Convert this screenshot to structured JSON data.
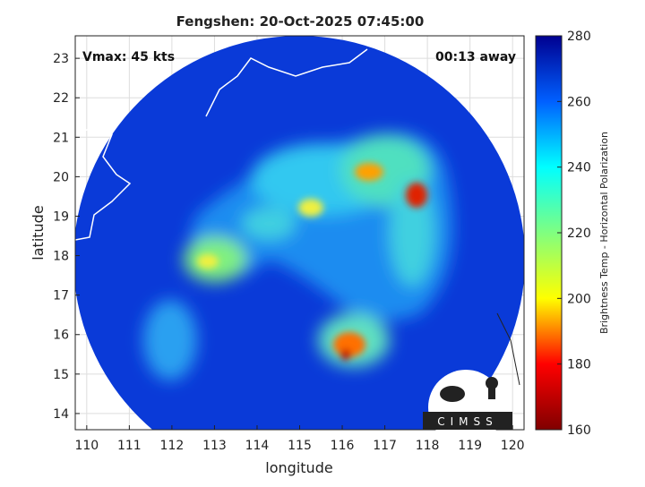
{
  "chart_data": {
    "type": "map",
    "title": "Fengshen: 20-Oct-2025 07:45:00",
    "annotations": [
      "Vmax: 45 kts",
      "00:13 away"
    ],
    "x_label": "longitude",
    "y_label": "latitude",
    "xlim": [
      109.73,
      120.27
    ],
    "xticks": [
      110,
      111,
      112,
      113,
      114,
      115,
      116,
      117,
      118,
      119,
      120
    ],
    "ylim": [
      13.59,
      23.57
    ],
    "yticks": [
      14,
      15,
      16,
      17,
      18,
      19,
      20,
      21,
      22,
      23
    ],
    "grid": true,
    "colorbar": {
      "label": "Brightness Temp - Horizontal Polarization",
      "lim": [
        160,
        280
      ],
      "ticks": [
        160,
        180,
        200,
        220,
        240,
        260,
        280
      ],
      "colors": [
        "#800000",
        "#ff0000",
        "#ffff00",
        "#80ff80",
        "#00ffff",
        "#0060ff",
        "#000090"
      ]
    },
    "logo": "CIMSS"
  }
}
